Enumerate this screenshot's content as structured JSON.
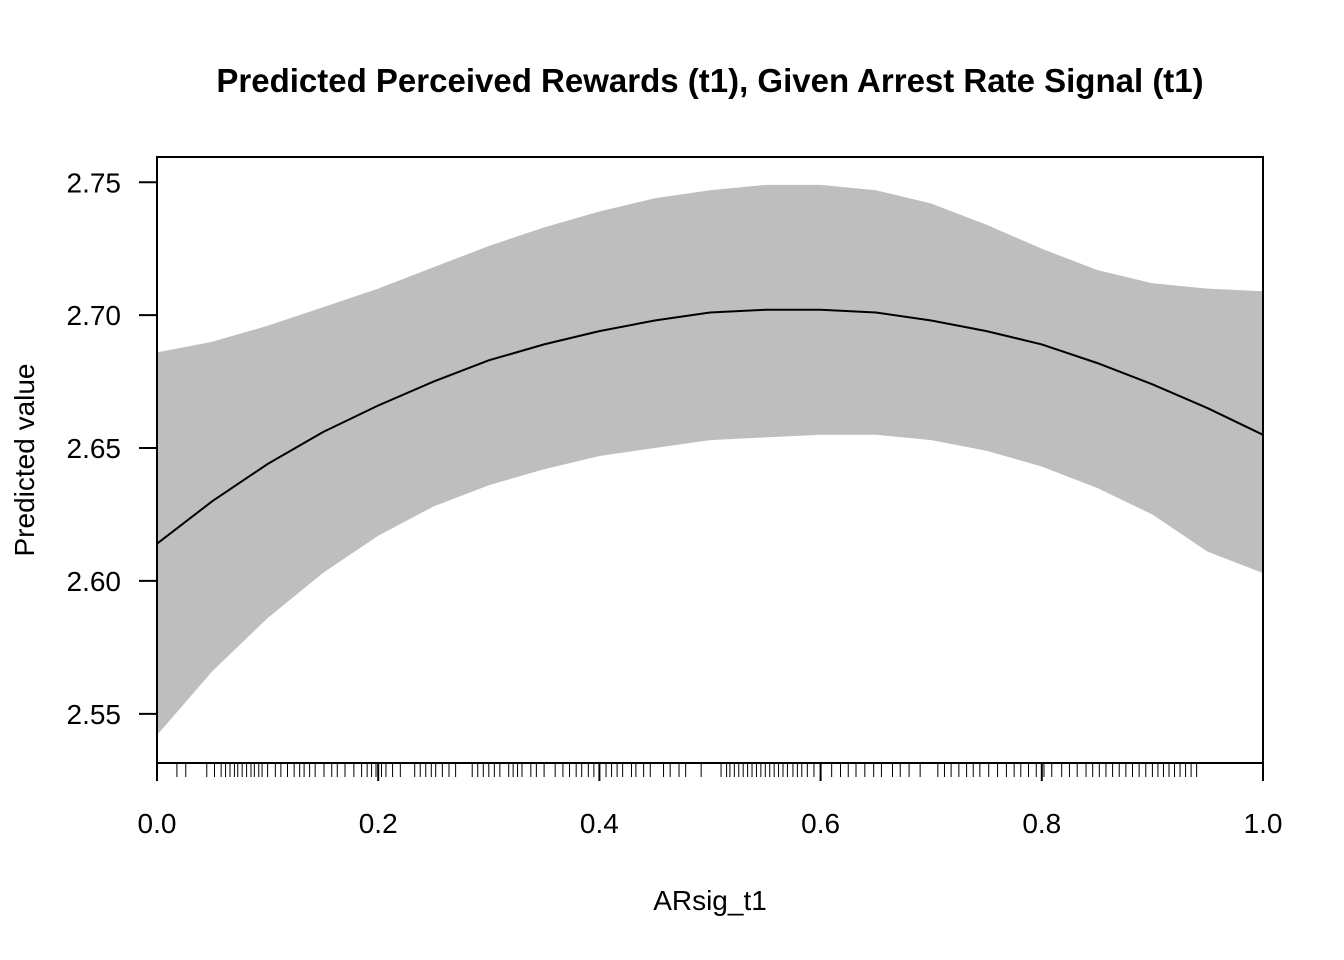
{
  "chart_data": {
    "type": "line",
    "title": "Predicted Perceived Rewards (t1), Given Arrest Rate Signal (t1)",
    "xlabel": "ARsig_t1",
    "ylabel": "Predicted value",
    "xlim": [
      0.0,
      1.0
    ],
    "ylim": [
      2.5315,
      2.7595
    ],
    "x_ticks": [
      "0.0",
      "0.2",
      "0.4",
      "0.6",
      "0.8",
      "1.0"
    ],
    "y_ticks": [
      "2.55",
      "2.60",
      "2.65",
      "2.70",
      "2.75"
    ],
    "grid": false,
    "legend": "none",
    "colors": {
      "band": "#bebebe",
      "line": "#000000"
    },
    "series": [
      {
        "kind": "line",
        "x": [
          0.0,
          0.05,
          0.1,
          0.15,
          0.2,
          0.25,
          0.3,
          0.35,
          0.4,
          0.45,
          0.5,
          0.55,
          0.6,
          0.65,
          0.7,
          0.75,
          0.8,
          0.85,
          0.9,
          0.95,
          1.0
        ],
        "y": [
          2.614,
          2.63,
          2.644,
          2.656,
          2.666,
          2.675,
          2.683,
          2.689,
          2.694,
          2.698,
          2.701,
          2.702,
          2.702,
          2.701,
          2.698,
          2.694,
          2.689,
          2.682,
          2.674,
          2.665,
          2.655
        ]
      },
      {
        "kind": "band",
        "x": [
          0.0,
          0.05,
          0.1,
          0.15,
          0.2,
          0.25,
          0.3,
          0.35,
          0.4,
          0.45,
          0.5,
          0.55,
          0.6,
          0.65,
          0.7,
          0.75,
          0.8,
          0.85,
          0.9,
          0.95,
          1.0
        ],
        "lower": [
          2.542,
          2.566,
          2.586,
          2.603,
          2.617,
          2.628,
          2.636,
          2.642,
          2.647,
          2.65,
          2.653,
          2.654,
          2.655,
          2.655,
          2.653,
          2.649,
          2.643,
          2.635,
          2.625,
          2.611,
          2.603
        ],
        "upper": [
          2.686,
          2.69,
          2.696,
          2.703,
          2.71,
          2.718,
          2.726,
          2.733,
          2.739,
          2.744,
          2.747,
          2.749,
          2.749,
          2.747,
          2.742,
          2.734,
          2.725,
          2.717,
          2.712,
          2.71,
          2.709
        ]
      }
    ],
    "rug": [
      0.018,
      0.026,
      0.045,
      0.052,
      0.058,
      0.062,
      0.066,
      0.07,
      0.073,
      0.077,
      0.081,
      0.085,
      0.088,
      0.092,
      0.095,
      0.1,
      0.107,
      0.112,
      0.118,
      0.124,
      0.129,
      0.133,
      0.138,
      0.143,
      0.151,
      0.158,
      0.163,
      0.17,
      0.178,
      0.185,
      0.19,
      0.194,
      0.198,
      0.203,
      0.207,
      0.213,
      0.22,
      0.233,
      0.238,
      0.243,
      0.248,
      0.252,
      0.258,
      0.264,
      0.27,
      0.285,
      0.29,
      0.295,
      0.3,
      0.305,
      0.31,
      0.318,
      0.322,
      0.326,
      0.33,
      0.338,
      0.343,
      0.35,
      0.36,
      0.367,
      0.373,
      0.379,
      0.384,
      0.39,
      0.395,
      0.4,
      0.406,
      0.411,
      0.416,
      0.421,
      0.429,
      0.433,
      0.44,
      0.446,
      0.458,
      0.464,
      0.472,
      0.478,
      0.492,
      0.51,
      0.515,
      0.518,
      0.522,
      0.526,
      0.53,
      0.534,
      0.538,
      0.542,
      0.546,
      0.55,
      0.554,
      0.558,
      0.562,
      0.566,
      0.57,
      0.575,
      0.579,
      0.583,
      0.588,
      0.594,
      0.6,
      0.61,
      0.618,
      0.625,
      0.632,
      0.64,
      0.648,
      0.655,
      0.665,
      0.672,
      0.68,
      0.69,
      0.706,
      0.712,
      0.718,
      0.725,
      0.732,
      0.738,
      0.744,
      0.752,
      0.76,
      0.768,
      0.775,
      0.781,
      0.788,
      0.795,
      0.802,
      0.809,
      0.818,
      0.825,
      0.832,
      0.84,
      0.846,
      0.852,
      0.858,
      0.864,
      0.87,
      0.876,
      0.882,
      0.888,
      0.894,
      0.9,
      0.905,
      0.91,
      0.915,
      0.92,
      0.925,
      0.93,
      0.935,
      0.94
    ]
  }
}
